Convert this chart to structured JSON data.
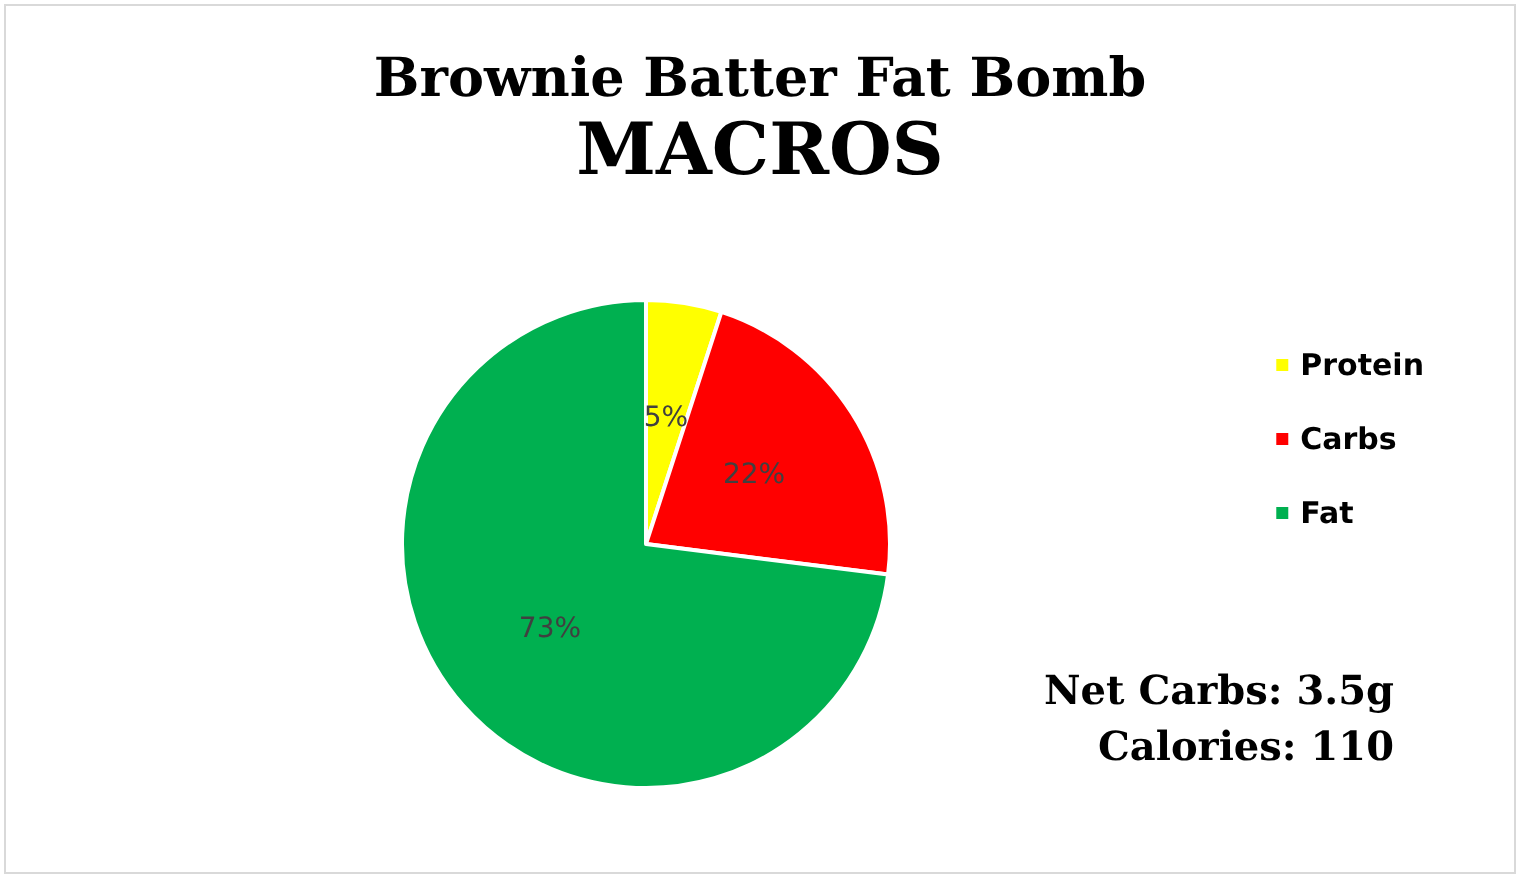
{
  "chart_data": {
    "type": "pie",
    "title": "Brownie Batter Fat Bomb",
    "subtitle": "MACROS",
    "categories": [
      "Protein",
      "Carbs",
      "Fat"
    ],
    "values": [
      5,
      22,
      73
    ],
    "colors": [
      "#ffff00",
      "#ff0000",
      "#00b050"
    ],
    "value_labels": [
      "5%",
      "22%",
      "73%"
    ],
    "legend": "right",
    "annotations": [
      "Net Carbs: 3.5g",
      "Calories: 110"
    ]
  }
}
